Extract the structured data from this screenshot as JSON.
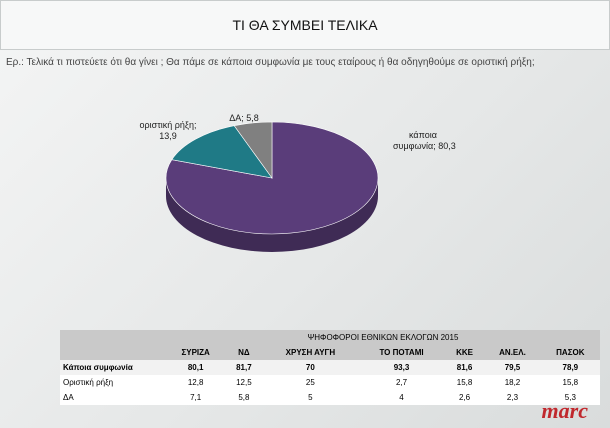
{
  "header": {
    "title": "ΤΙ ΘΑ ΣΥΜΒΕΙ ΤΕΛΙΚΑ"
  },
  "question": "Ερ.:  Τελικά τι πιστεύετε ότι θα γίνει ; Θα πάμε σε κάποια συμφωνία με τους εταίρους ή θα οδηγηθούμε σε οριστική ρήξη;",
  "chart_data": {
    "type": "pie",
    "categories": [
      "κάποια συμφωνία;",
      "οριστική ρήξη;",
      "ΔΑ;"
    ],
    "values": [
      80.3,
      13.9,
      5.8
    ],
    "value_labels": [
      "80,3",
      "13,9",
      "5,8"
    ],
    "colors": [
      "#5a3d7a",
      "#1f7a86",
      "#808080"
    ]
  },
  "table": {
    "caption": "ΨΗΦΟΦΟΡΟΙ ΕΘΝΙΚΩΝ ΕΚΛΟΓΩΝ 2015",
    "columns": [
      "ΣΥΡΙΖΑ",
      "ΝΔ",
      "ΧΡΥΣΗ ΑΥΓΗ",
      "ΤΟ ΠΟΤΑΜΙ",
      "ΚΚΕ",
      "ΑΝ.ΕΛ.",
      "ΠΑΣΟΚ"
    ],
    "rows": [
      [
        "Κάποια συμφωνία",
        "80,1",
        "81,7",
        "70",
        "93,3",
        "81,6",
        "79,5",
        "78,9"
      ],
      [
        "Οριστική ρήξη",
        "12,8",
        "12,5",
        "25",
        "2,7",
        "15,8",
        "18,2",
        "15,8"
      ],
      [
        "ΔΑ",
        "7,1",
        "5,8",
        "5",
        "4",
        "2,6",
        "2,3",
        "5,3"
      ]
    ]
  },
  "logo": "marc"
}
